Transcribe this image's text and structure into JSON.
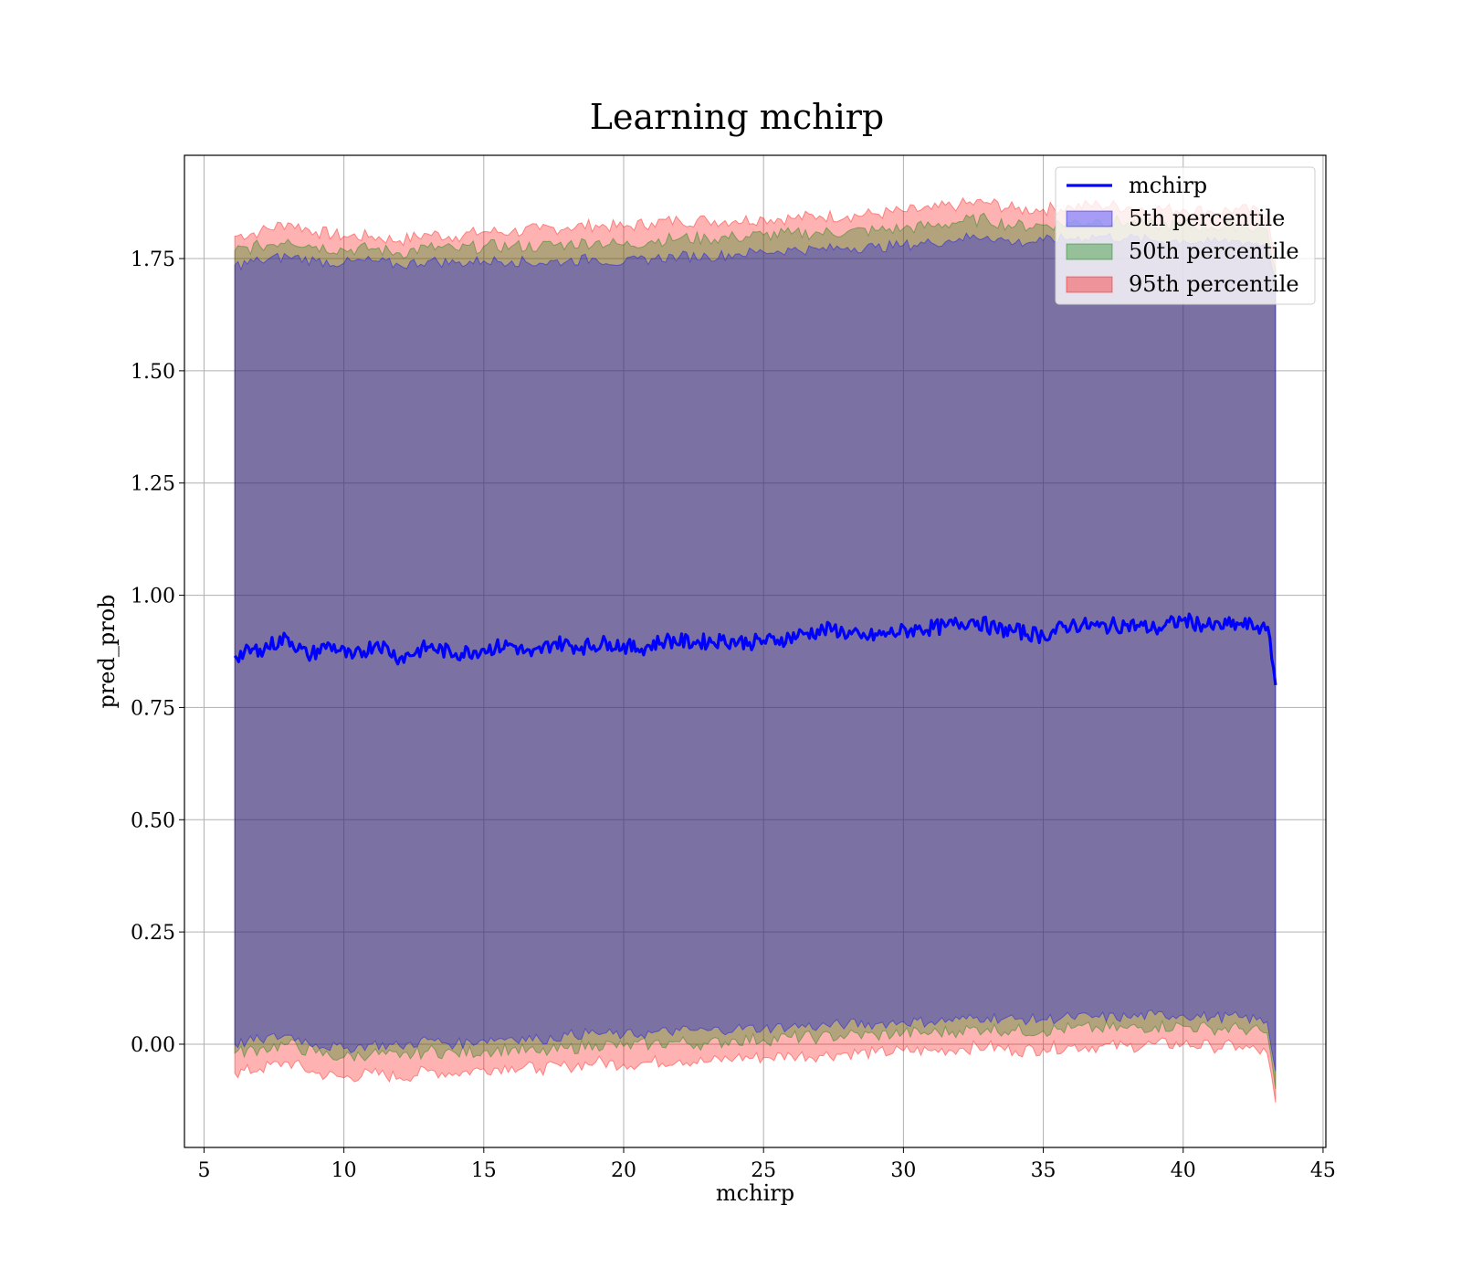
{
  "chart_data": {
    "type": "area",
    "title": "Learning mchirp",
    "xlabel": "mchirp",
    "ylabel": "pred_prob",
    "xlim": [
      4.3,
      45.1
    ],
    "ylim": [
      -0.23,
      1.98
    ],
    "xticks": [
      5,
      10,
      15,
      20,
      25,
      30,
      35,
      40,
      45
    ],
    "yticks": [
      0.0,
      0.25,
      0.5,
      0.75,
      1.0,
      1.25,
      1.5,
      1.75
    ],
    "xtick_labels": [
      "5",
      "10",
      "15",
      "20",
      "25",
      "30",
      "35",
      "40",
      "45"
    ],
    "ytick_labels": [
      "0.00",
      "0.25",
      "0.50",
      "0.75",
      "1.00",
      "1.25",
      "1.50",
      "1.75"
    ],
    "grid": true,
    "legend_position": "top-right",
    "colors": {
      "line": "#0000ff",
      "band5": "#0000ff",
      "band50": "#008000",
      "band95": "#ff0000"
    },
    "legend": [
      {
        "label": "mchirp",
        "kind": "line",
        "color": "#0000ff"
      },
      {
        "label": "5th percentile",
        "kind": "band",
        "color": "#0000ff"
      },
      {
        "label": "50th percentile",
        "kind": "band",
        "color": "#008000"
      },
      {
        "label": "95th percentile",
        "kind": "band",
        "color": "#ff0000"
      }
    ],
    "series": [
      {
        "name": "mchirp",
        "x": [
          6.1,
          7.0,
          8.0,
          8.7,
          9.5,
          10.3,
          11.2,
          12.0,
          13.0,
          14.0,
          15.0,
          16.0,
          16.7,
          17.5,
          18.5,
          19.5,
          20.5,
          21.5,
          22.5,
          23.5,
          24.5,
          25.5,
          26.5,
          27.5,
          28.5,
          29.5,
          30.5,
          31.5,
          32.5,
          33.3,
          34.0,
          35.0,
          36.0,
          37.0,
          38.0,
          39.0,
          40.0,
          41.0,
          42.0,
          42.8,
          43.1,
          43.3
        ],
        "y": [
          0.865,
          0.88,
          0.905,
          0.865,
          0.89,
          0.86,
          0.895,
          0.86,
          0.885,
          0.87,
          0.88,
          0.89,
          0.865,
          0.895,
          0.885,
          0.895,
          0.88,
          0.9,
          0.895,
          0.9,
          0.895,
          0.9,
          0.915,
          0.925,
          0.905,
          0.915,
          0.925,
          0.93,
          0.945,
          0.925,
          0.92,
          0.91,
          0.935,
          0.93,
          0.935,
          0.925,
          0.945,
          0.93,
          0.935,
          0.93,
          0.905,
          0.8
        ]
      },
      {
        "name": "5th percentile",
        "x": [
          6.1,
          7.0,
          8.0,
          9.0,
          10.0,
          11.0,
          12.0,
          13.0,
          14.0,
          15.0,
          16.0,
          17.0,
          18.0,
          19.0,
          20.0,
          21.0,
          22.0,
          23.0,
          24.0,
          25.0,
          26.0,
          27.0,
          28.0,
          29.0,
          30.0,
          31.0,
          32.0,
          33.0,
          34.0,
          35.0,
          36.0,
          37.0,
          38.0,
          39.0,
          40.0,
          41.0,
          42.0,
          43.0,
          43.3
        ],
        "lower": [
          0.0,
          0.01,
          0.02,
          0.0,
          -0.01,
          0.0,
          -0.005,
          0.01,
          0.0,
          0.01,
          0.015,
          0.01,
          0.02,
          0.025,
          0.02,
          0.025,
          0.03,
          0.03,
          0.035,
          0.035,
          0.04,
          0.04,
          0.045,
          0.045,
          0.05,
          0.05,
          0.055,
          0.06,
          0.055,
          0.055,
          0.06,
          0.06,
          0.06,
          0.065,
          0.065,
          0.06,
          0.06,
          0.05,
          -0.06
        ],
        "upper": [
          1.735,
          1.745,
          1.755,
          1.745,
          1.74,
          1.745,
          1.735,
          1.745,
          1.74,
          1.745,
          1.745,
          1.74,
          1.745,
          1.75,
          1.74,
          1.75,
          1.755,
          1.755,
          1.76,
          1.765,
          1.77,
          1.77,
          1.775,
          1.775,
          1.78,
          1.785,
          1.795,
          1.8,
          1.785,
          1.79,
          1.795,
          1.8,
          1.795,
          1.79,
          1.79,
          1.785,
          1.79,
          1.78,
          1.7
        ]
      },
      {
        "name": "50th percentile",
        "x": [
          6.1,
          7.0,
          8.0,
          9.0,
          10.0,
          11.0,
          12.0,
          13.0,
          14.0,
          15.0,
          16.0,
          17.0,
          18.0,
          19.0,
          20.0,
          21.0,
          22.0,
          23.0,
          24.0,
          25.0,
          26.0,
          27.0,
          28.0,
          29.0,
          30.0,
          31.0,
          32.0,
          33.0,
          34.0,
          35.0,
          36.0,
          37.0,
          38.0,
          39.0,
          40.0,
          41.0,
          42.0,
          43.0,
          43.3
        ],
        "lower": [
          -0.02,
          -0.01,
          0.0,
          -0.02,
          -0.03,
          -0.02,
          -0.03,
          -0.015,
          -0.02,
          -0.015,
          -0.01,
          -0.02,
          -0.01,
          0.0,
          -0.005,
          0.0,
          0.005,
          0.0,
          0.01,
          0.01,
          0.015,
          0.015,
          0.02,
          0.02,
          0.025,
          0.025,
          0.03,
          0.035,
          0.03,
          0.03,
          0.035,
          0.035,
          0.035,
          0.04,
          0.04,
          0.035,
          0.035,
          0.025,
          -0.1
        ]
      },
      {
        "name": "95th percentile",
        "x": [
          6.1,
          7.0,
          8.0,
          9.0,
          10.0,
          11.0,
          12.0,
          13.0,
          14.0,
          15.0,
          16.0,
          17.0,
          18.0,
          19.0,
          20.0,
          21.0,
          22.0,
          23.0,
          24.0,
          25.0,
          26.0,
          27.0,
          28.0,
          29.0,
          30.0,
          31.0,
          32.0,
          33.0,
          34.0,
          35.0,
          36.0,
          37.0,
          38.0,
          39.0,
          40.0,
          41.0,
          42.0,
          43.0,
          43.3
        ],
        "lower": [
          -0.065,
          -0.055,
          -0.04,
          -0.065,
          -0.075,
          -0.065,
          -0.075,
          -0.06,
          -0.065,
          -0.055,
          -0.05,
          -0.055,
          -0.05,
          -0.04,
          -0.045,
          -0.04,
          -0.035,
          -0.04,
          -0.03,
          -0.03,
          -0.025,
          -0.025,
          -0.02,
          -0.02,
          -0.015,
          -0.015,
          -0.01,
          -0.005,
          -0.015,
          -0.01,
          -0.005,
          -0.005,
          -0.005,
          0.0,
          0.0,
          -0.005,
          -0.005,
          -0.02,
          -0.13
        ],
        "upper": [
          1.8,
          1.81,
          1.83,
          1.81,
          1.8,
          1.8,
          1.79,
          1.805,
          1.8,
          1.81,
          1.81,
          1.815,
          1.82,
          1.825,
          1.82,
          1.83,
          1.835,
          1.835,
          1.835,
          1.84,
          1.84,
          1.845,
          1.845,
          1.85,
          1.855,
          1.86,
          1.87,
          1.875,
          1.86,
          1.86,
          1.865,
          1.87,
          1.865,
          1.86,
          1.86,
          1.855,
          1.86,
          1.85,
          1.75
        ]
      }
    ]
  }
}
